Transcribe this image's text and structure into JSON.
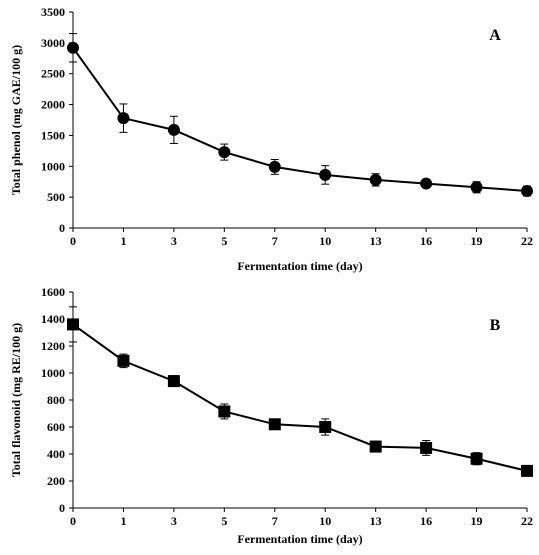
{
  "chart_data": [
    {
      "type": "line",
      "panel_label": "A",
      "xlabel": "Fermentation time (day)",
      "ylabel": "Total phenol (mg GAE/100 g)",
      "categories": [
        "0",
        "1",
        "3",
        "5",
        "7",
        "10",
        "13",
        "16",
        "19",
        "22"
      ],
      "ylim": [
        0,
        3500
      ],
      "yticks": [
        0,
        500,
        1000,
        1500,
        2000,
        2500,
        3000,
        3500
      ],
      "marker": "circle",
      "grid": false,
      "series": [
        {
          "values": [
            2920,
            1780,
            1590,
            1230,
            990,
            860,
            780,
            720,
            660,
            600
          ],
          "errors": [
            230,
            230,
            220,
            130,
            120,
            150,
            100,
            40,
            90,
            80
          ]
        }
      ]
    },
    {
      "type": "line",
      "panel_label": "B",
      "xlabel": "Fermentation time (day)",
      "ylabel": "Total flavonoid (mg RE/100 g)",
      "categories": [
        "0",
        "1",
        "3",
        "5",
        "7",
        "10",
        "13",
        "16",
        "19",
        "22"
      ],
      "ylim": [
        0,
        1600
      ],
      "yticks": [
        0,
        200,
        400,
        600,
        800,
        1000,
        1200,
        1400,
        1600
      ],
      "marker": "square",
      "grid": false,
      "series": [
        {
          "values": [
            1360,
            1090,
            940,
            715,
            620,
            600,
            455,
            445,
            365,
            275
          ],
          "errors": [
            130,
            50,
            40,
            55,
            30,
            60,
            40,
            55,
            45,
            25
          ]
        }
      ]
    }
  ]
}
